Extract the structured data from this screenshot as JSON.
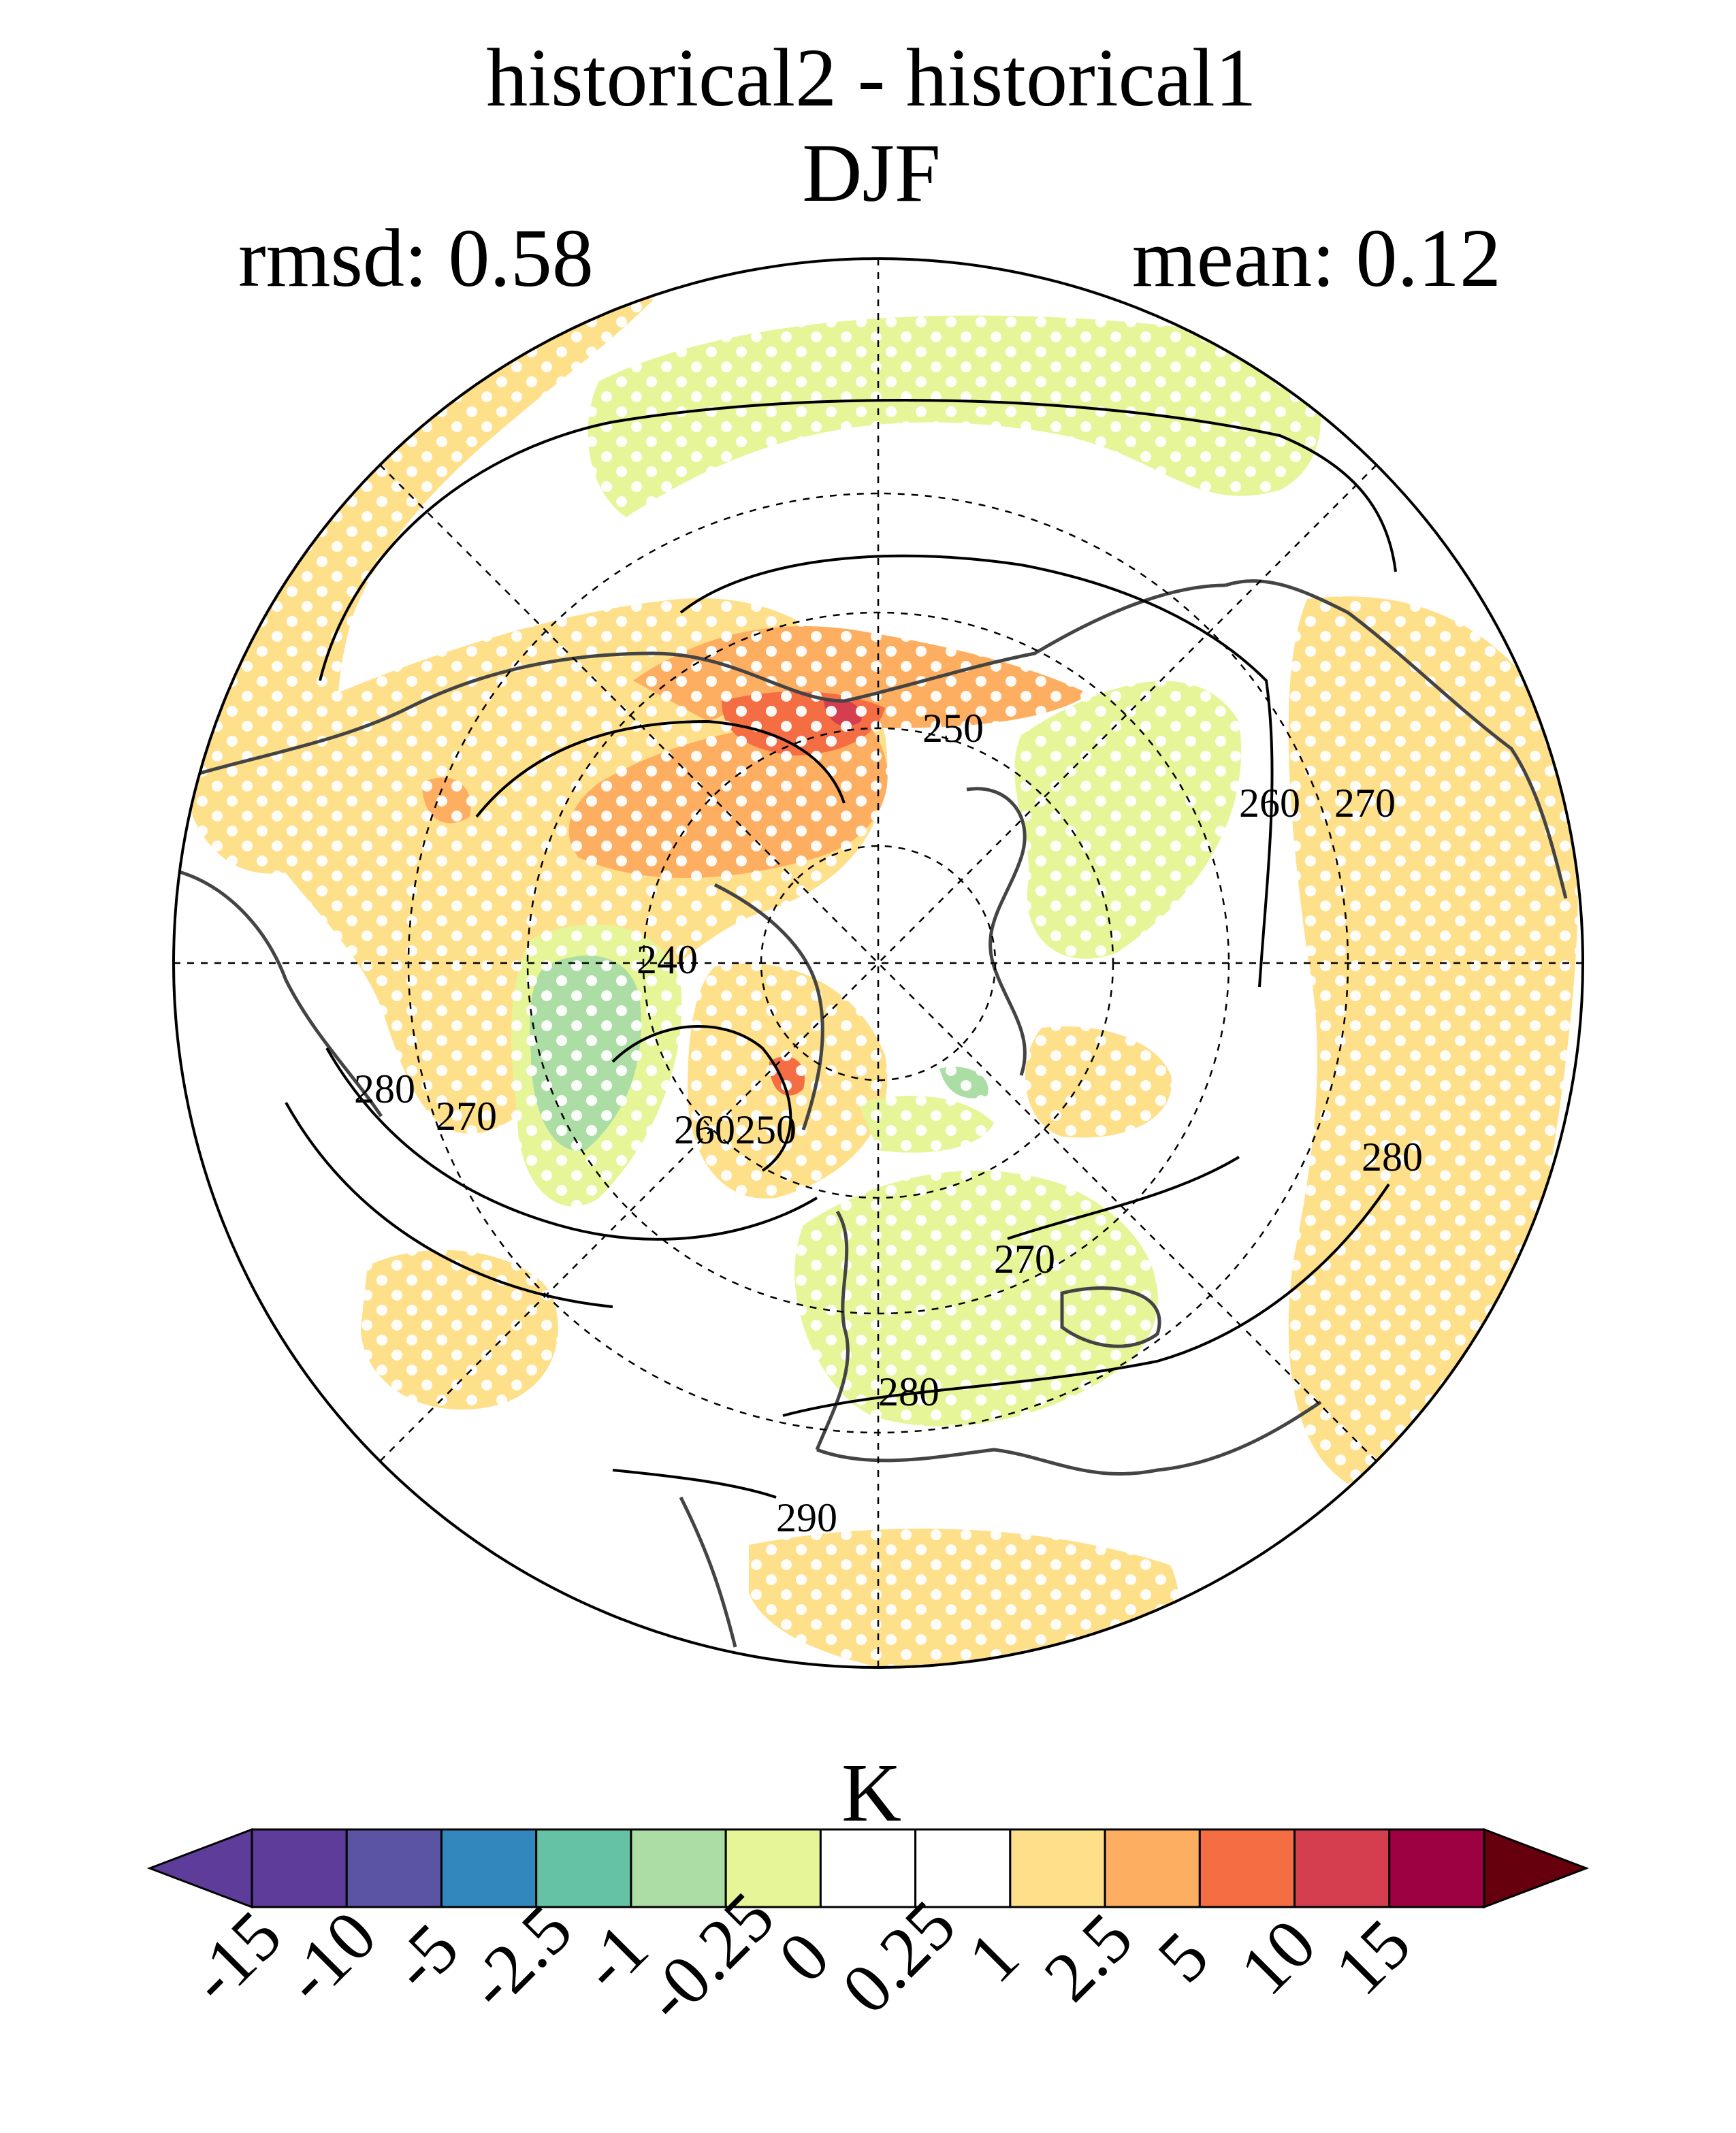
{
  "title": {
    "line1": "historical2 - historical1",
    "line2": "DJF"
  },
  "stats": {
    "rmsd": "rmsd: 0.58",
    "mean": "mean: 0.12"
  },
  "colorbar": {
    "unit": "K",
    "ticks": [
      "-15",
      "-10",
      "-5",
      "-2.5",
      "-1",
      "-0.25",
      "0",
      "0.25",
      "1",
      "2.5",
      "5",
      "10",
      "15"
    ],
    "colors": [
      "#5e3c99",
      "#5b53a4",
      "#3288bd",
      "#66c2a5",
      "#abdda4",
      "#e6f598",
      "#ffffff",
      "#ffffff",
      "#fee08b",
      "#fdae61",
      "#f46d43",
      "#d53e4f",
      "#9e0142"
    ],
    "under_color": "#5e3c99",
    "over_color": "#67000d"
  },
  "contour_labels": [
    "250",
    "260",
    "270",
    "240",
    "280",
    "270",
    "260",
    "250",
    "280",
    "270",
    "280",
    "290"
  ],
  "colors": {
    "positive_small": "#fee08b",
    "positive_mid": "#fdae61",
    "positive_high": "#f46d43",
    "positive_max": "#d53e4f",
    "negative_small": "#e6f598",
    "negative_mid": "#abdda4",
    "coast": "#444444",
    "contour": "#000000"
  }
}
